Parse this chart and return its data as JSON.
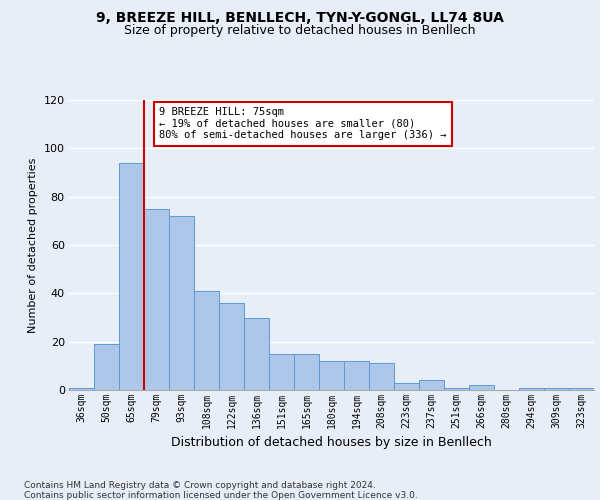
{
  "title1": "9, BREEZE HILL, BENLLECH, TYN-Y-GONGL, LL74 8UA",
  "title2": "Size of property relative to detached houses in Benllech",
  "xlabel": "Distribution of detached houses by size in Benllech",
  "ylabel": "Number of detached properties",
  "categories": [
    "36sqm",
    "50sqm",
    "65sqm",
    "79sqm",
    "93sqm",
    "108sqm",
    "122sqm",
    "136sqm",
    "151sqm",
    "165sqm",
    "180sqm",
    "194sqm",
    "208sqm",
    "223sqm",
    "237sqm",
    "251sqm",
    "266sqm",
    "280sqm",
    "294sqm",
    "309sqm",
    "323sqm"
  ],
  "values": [
    1,
    19,
    94,
    75,
    72,
    41,
    36,
    30,
    15,
    15,
    12,
    12,
    11,
    3,
    4,
    1,
    2,
    0,
    1,
    1,
    1
  ],
  "bar_color": "#aec6e8",
  "bar_edge_color": "#5b9bd5",
  "vline_x_index": 2,
  "vline_color": "#cc0000",
  "annotation_text": "9 BREEZE HILL: 75sqm\n← 19% of detached houses are smaller (80)\n80% of semi-detached houses are larger (336) →",
  "annotation_box_color": "#ffffff",
  "annotation_box_edge": "#cc0000",
  "ylim": [
    0,
    120
  ],
  "yticks": [
    0,
    20,
    40,
    60,
    80,
    100,
    120
  ],
  "footer_line1": "Contains HM Land Registry data © Crown copyright and database right 2024.",
  "footer_line2": "Contains public sector information licensed under the Open Government Licence v3.0.",
  "bg_color": "#e8eef8",
  "plot_bg_color": "#e8eef8",
  "grid_color": "#ffffff",
  "title1_fontsize": 10,
  "title2_fontsize": 9,
  "ylabel_fontsize": 8,
  "xlabel_fontsize": 9
}
